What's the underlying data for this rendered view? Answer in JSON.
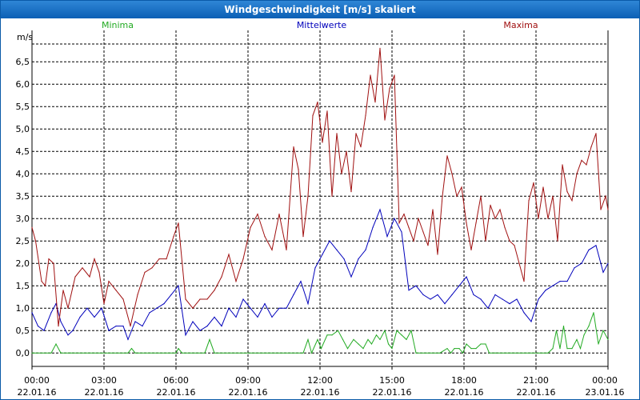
{
  "window": {
    "title": "Windgeschwindigkeit [m/s] skaliert"
  },
  "colors": {
    "minima": "#22aa22",
    "mittelwerte": "#0000bb",
    "maxima": "#a01010",
    "grid": "#000000",
    "axis": "#000000"
  },
  "chart_data": {
    "type": "line",
    "title": "Windgeschwindigkeit [m/s] skaliert",
    "ylabel": "m/s",
    "ylim": [
      -0.3,
      7.2
    ],
    "xlim": [
      0,
      24
    ],
    "y_ticks": [
      {
        "value": 0.0,
        "label": "0,0"
      },
      {
        "value": 0.5,
        "label": "0,5"
      },
      {
        "value": 1.0,
        "label": "1,0"
      },
      {
        "value": 1.5,
        "label": "1,5"
      },
      {
        "value": 2.0,
        "label": "2,0"
      },
      {
        "value": 2.5,
        "label": "2,5"
      },
      {
        "value": 3.0,
        "label": "3,0"
      },
      {
        "value": 3.5,
        "label": "3,5"
      },
      {
        "value": 4.0,
        "label": "4,0"
      },
      {
        "value": 4.5,
        "label": "4,5"
      },
      {
        "value": 5.0,
        "label": "5,0"
      },
      {
        "value": 5.5,
        "label": "5,5"
      },
      {
        "value": 6.0,
        "label": "6,0"
      },
      {
        "value": 6.5,
        "label": "6,5"
      }
    ],
    "x_ticks": [
      {
        "value": 0,
        "time": "00:00",
        "date": "22.01.16"
      },
      {
        "value": 3,
        "time": "03:00",
        "date": "22.01.16"
      },
      {
        "value": 6,
        "time": "06:00",
        "date": "22.01.16"
      },
      {
        "value": 9,
        "time": "09:00",
        "date": "22.01.16"
      },
      {
        "value": 12,
        "time": "12:00",
        "date": "22.01.16"
      },
      {
        "value": 15,
        "time": "15:00",
        "date": "22.01.16"
      },
      {
        "value": 18,
        "time": "18:00",
        "date": "22.01.16"
      },
      {
        "value": 21,
        "time": "21:00",
        "date": "22.01.16"
      },
      {
        "value": 24,
        "time": "00:00",
        "date": "23.01.16"
      }
    ],
    "series": [
      {
        "name": "Minima",
        "color": "#22aa22",
        "x": [
          0,
          0.8,
          1.0,
          1.2,
          1.6,
          4.0,
          4.15,
          4.3,
          6.0,
          6.1,
          6.25,
          7.2,
          7.4,
          7.6,
          11.3,
          11.5,
          11.65,
          11.9,
          12.05,
          12.3,
          12.5,
          12.75,
          12.95,
          13.15,
          13.4,
          13.6,
          13.8,
          14.0,
          14.15,
          14.35,
          14.5,
          14.7,
          14.85,
          15.0,
          15.2,
          15.4,
          15.6,
          15.8,
          16.0,
          17.0,
          17.3,
          17.45,
          17.6,
          17.8,
          17.95,
          18.1,
          18.3,
          18.5,
          18.7,
          18.9,
          19.05,
          19.3,
          21.5,
          21.7,
          21.85,
          22.0,
          22.15,
          22.3,
          22.5,
          22.7,
          22.85,
          23.0,
          23.2,
          23.4,
          23.6,
          23.8,
          24.0
        ],
        "values": [
          0.0,
          0.0,
          0.2,
          0.0,
          0.0,
          0.0,
          0.1,
          0.0,
          0.0,
          0.1,
          0.0,
          0.0,
          0.3,
          0.0,
          0.0,
          0.3,
          0.0,
          0.3,
          0.1,
          0.4,
          0.4,
          0.5,
          0.3,
          0.1,
          0.3,
          0.2,
          0.1,
          0.3,
          0.2,
          0.4,
          0.3,
          0.5,
          0.2,
          0.1,
          0.5,
          0.4,
          0.3,
          0.5,
          0.0,
          0.0,
          0.1,
          0.0,
          0.1,
          0.1,
          0.0,
          0.2,
          0.1,
          0.1,
          0.2,
          0.2,
          0.0,
          0.0,
          0.0,
          0.1,
          0.5,
          0.1,
          0.6,
          0.1,
          0.1,
          0.3,
          0.1,
          0.4,
          0.6,
          0.9,
          0.2,
          0.5,
          0.3
        ]
      },
      {
        "name": "Mittelwerte",
        "color": "#0000bb",
        "x": [
          0,
          0.25,
          0.5,
          0.8,
          1.0,
          1.2,
          1.5,
          1.7,
          2.0,
          2.3,
          2.6,
          2.9,
          3.2,
          3.5,
          3.8,
          4.0,
          4.3,
          4.6,
          4.9,
          5.2,
          5.5,
          5.8,
          6.1,
          6.4,
          6.7,
          7.0,
          7.3,
          7.6,
          7.9,
          8.2,
          8.5,
          8.8,
          9.1,
          9.4,
          9.7,
          10.0,
          10.3,
          10.6,
          10.9,
          11.2,
          11.5,
          11.8,
          12.1,
          12.4,
          12.7,
          13.0,
          13.3,
          13.6,
          13.9,
          14.2,
          14.5,
          14.8,
          15.1,
          15.4,
          15.7,
          16.0,
          16.3,
          16.6,
          16.9,
          17.2,
          17.5,
          17.8,
          18.1,
          18.4,
          18.7,
          19.0,
          19.3,
          19.6,
          19.9,
          20.2,
          20.5,
          20.8,
          21.1,
          21.4,
          21.7,
          22.0,
          22.3,
          22.6,
          22.9,
          23.2,
          23.5,
          23.8,
          24.0
        ],
        "values": [
          0.9,
          0.6,
          0.5,
          0.9,
          1.1,
          0.7,
          0.4,
          0.5,
          0.8,
          1.0,
          0.8,
          1.0,
          0.5,
          0.6,
          0.6,
          0.3,
          0.7,
          0.6,
          0.9,
          1.0,
          1.1,
          1.3,
          1.5,
          0.4,
          0.7,
          0.5,
          0.6,
          0.8,
          0.6,
          1.0,
          0.8,
          1.2,
          1.0,
          0.8,
          1.1,
          0.8,
          1.0,
          1.0,
          1.3,
          1.6,
          1.1,
          1.9,
          2.2,
          2.5,
          2.3,
          2.1,
          1.7,
          2.1,
          2.3,
          2.8,
          3.2,
          2.6,
          3.0,
          2.7,
          1.4,
          1.5,
          1.3,
          1.2,
          1.3,
          1.1,
          1.3,
          1.5,
          1.7,
          1.3,
          1.2,
          1.0,
          1.3,
          1.2,
          1.1,
          1.2,
          0.9,
          0.7,
          1.2,
          1.4,
          1.5,
          1.6,
          1.6,
          1.9,
          2.0,
          2.3,
          2.4,
          1.8,
          2.0
        ]
      },
      {
        "name": "Maxima",
        "color": "#a01010",
        "x": [
          0,
          0.15,
          0.4,
          0.55,
          0.7,
          0.9,
          1.1,
          1.3,
          1.5,
          1.8,
          2.1,
          2.4,
          2.6,
          2.8,
          3.0,
          3.2,
          3.5,
          3.8,
          4.1,
          4.4,
          4.7,
          5.0,
          5.3,
          5.6,
          5.9,
          6.1,
          6.4,
          6.7,
          7.0,
          7.3,
          7.6,
          7.9,
          8.2,
          8.5,
          8.8,
          9.1,
          9.4,
          9.7,
          10.0,
          10.3,
          10.6,
          10.9,
          11.1,
          11.3,
          11.5,
          11.7,
          11.9,
          12.1,
          12.3,
          12.5,
          12.7,
          12.9,
          13.1,
          13.3,
          13.5,
          13.7,
          13.9,
          14.1,
          14.3,
          14.5,
          14.7,
          14.9,
          15.1,
          15.3,
          15.5,
          15.7,
          15.9,
          16.1,
          16.3,
          16.5,
          16.7,
          16.9,
          17.1,
          17.3,
          17.5,
          17.7,
          17.9,
          18.1,
          18.3,
          18.5,
          18.7,
          18.9,
          19.1,
          19.3,
          19.5,
          19.7,
          19.9,
          20.1,
          20.3,
          20.5,
          20.7,
          20.9,
          21.1,
          21.3,
          21.5,
          21.7,
          21.9,
          22.1,
          22.3,
          22.5,
          22.7,
          22.9,
          23.1,
          23.3,
          23.5,
          23.7,
          23.9,
          24.0
        ],
        "values": [
          2.8,
          2.5,
          1.6,
          1.5,
          2.1,
          2.0,
          0.6,
          1.4,
          1.0,
          1.7,
          1.9,
          1.7,
          2.1,
          1.8,
          1.1,
          1.6,
          1.4,
          1.2,
          0.6,
          1.3,
          1.8,
          1.9,
          2.1,
          2.1,
          2.6,
          2.9,
          1.2,
          1.0,
          1.2,
          1.2,
          1.4,
          1.7,
          2.2,
          1.6,
          2.1,
          2.8,
          3.1,
          2.6,
          2.3,
          3.1,
          2.3,
          4.6,
          4.1,
          2.6,
          3.5,
          5.3,
          5.6,
          4.7,
          5.4,
          3.5,
          4.9,
          4.0,
          4.5,
          3.6,
          4.9,
          4.6,
          5.3,
          6.2,
          5.6,
          6.8,
          5.2,
          5.9,
          6.2,
          2.9,
          3.1,
          2.8,
          2.5,
          3.0,
          2.7,
          2.4,
          3.2,
          2.2,
          3.5,
          4.4,
          4.0,
          3.5,
          3.7,
          2.9,
          2.3,
          2.9,
          3.5,
          2.5,
          3.3,
          3.0,
          3.2,
          2.8,
          2.5,
          2.4,
          2.0,
          1.6,
          3.4,
          3.8,
          3.0,
          3.7,
          3.0,
          3.5,
          2.5,
          4.2,
          3.6,
          3.4,
          4.0,
          4.3,
          4.2,
          4.6,
          4.9,
          3.2,
          3.5,
          3.2
        ]
      }
    ]
  }
}
